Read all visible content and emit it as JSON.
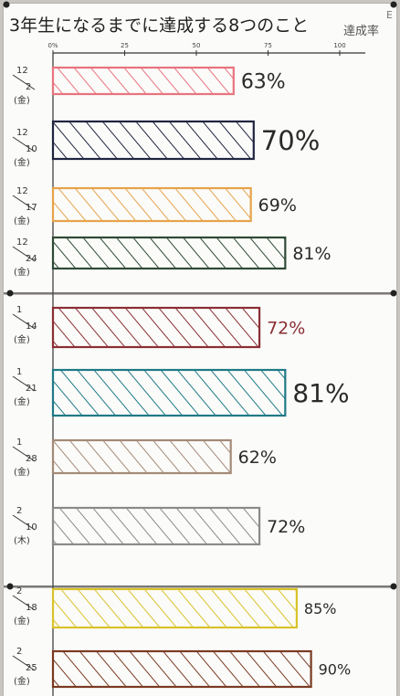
{
  "chart_data": {
    "type": "bar",
    "orientation": "horizontal",
    "title": "3年生になるまでに達成する8つのこと",
    "title_suffix": "達成率",
    "corner_mark": "E",
    "xlim": [
      0,
      100
    ],
    "x_ticks": [
      "0%",
      "25",
      "50",
      "75",
      "100"
    ],
    "grid": false,
    "legend": "none",
    "categories": [
      {
        "month": "12",
        "day": "2",
        "weekday": "金"
      },
      {
        "month": "12",
        "day": "10",
        "weekday": "金"
      },
      {
        "month": "12",
        "day": "17",
        "weekday": "金"
      },
      {
        "month": "12",
        "day": "24",
        "weekday": "金"
      },
      {
        "month": "1",
        "day": "14",
        "weekday": "金"
      },
      {
        "month": "1",
        "day": "21",
        "weekday": "金"
      },
      {
        "month": "1",
        "day": "28",
        "weekday": "金"
      },
      {
        "month": "2",
        "day": "10",
        "weekday": "木"
      },
      {
        "month": "2",
        "day": "18",
        "weekday": "金"
      },
      {
        "month": "2",
        "day": "25",
        "weekday": "金"
      }
    ],
    "values": [
      63,
      70,
      69,
      81,
      72,
      81,
      62,
      72,
      85,
      90
    ],
    "value_labels": [
      "63%",
      "70%",
      "69%",
      "81%",
      "72%",
      "81%",
      "62%",
      "72%",
      "85%",
      "90%"
    ],
    "colors": [
      "#e8737f",
      "#1f2440",
      "#e7a34a",
      "#2e4a35",
      "#8a2e34",
      "#1e7a86",
      "#a48a78",
      "#8a8a8a",
      "#d9c22a",
      "#7a3a22"
    ],
    "label_colors": [
      "#2a2a2a",
      "#2a2a2a",
      "#2a2a2a",
      "#2a2a2a",
      "#8a2e34",
      "#2a2a2a",
      "#2a2a2a",
      "#2a2a2a",
      "#2a2a2a",
      "#2a2a2a"
    ]
  }
}
